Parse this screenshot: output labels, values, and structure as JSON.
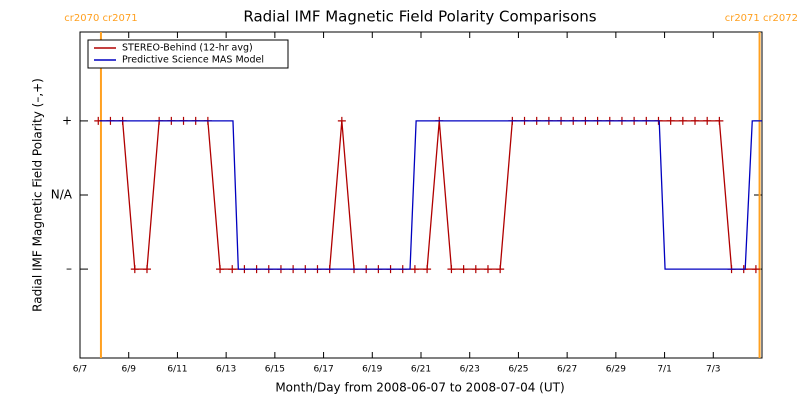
{
  "chart_data": {
    "type": "line",
    "title": "Radial IMF Magnetic Field Polarity Comparisons",
    "xlabel": "Month/Day from 2008-06-07 to 2008-07-04 (UT)",
    "ylabel": "Radial IMF Magnetic Field Polarity (–,+)",
    "xlim": [
      0,
      28
    ],
    "ylim": [
      -2.2,
      2.2
    ],
    "xticks": [
      {
        "value": 0,
        "label": "6/7"
      },
      {
        "value": 2,
        "label": "6/9"
      },
      {
        "value": 4,
        "label": "6/11"
      },
      {
        "value": 6,
        "label": "6/13"
      },
      {
        "value": 8,
        "label": "6/15"
      },
      {
        "value": 10,
        "label": "6/17"
      },
      {
        "value": 12,
        "label": "6/19"
      },
      {
        "value": 14,
        "label": "6/21"
      },
      {
        "value": 16,
        "label": "6/23"
      },
      {
        "value": 18,
        "label": "6/25"
      },
      {
        "value": 20,
        "label": "6/27"
      },
      {
        "value": 22,
        "label": "6/29"
      },
      {
        "value": 24,
        "label": "7/1"
      },
      {
        "value": 26,
        "label": "7/3"
      }
    ],
    "yticks": [
      {
        "value": 1,
        "label": "+"
      },
      {
        "value": 0,
        "label": "N/A"
      },
      {
        "value": -1,
        "label": "–"
      }
    ],
    "legend": "upper left",
    "annotations": [
      {
        "text": "cr2070 cr2071",
        "x": 0.86,
        "color": "#ffa020"
      },
      {
        "text": "cr2071 cr2072",
        "x": 27.9,
        "color": "#ffa020"
      }
    ],
    "series": [
      {
        "name": "STEREO-Behind (12-hr avg)",
        "color": "#b00000",
        "markers": true,
        "x": [
          0.75,
          1.25,
          1.75,
          2.25,
          2.75,
          3.25,
          3.75,
          4.25,
          4.75,
          5.25,
          5.75,
          6.25,
          6.75,
          7.25,
          7.75,
          8.25,
          8.75,
          9.25,
          9.75,
          10.25,
          10.75,
          11.25,
          11.75,
          12.25,
          12.75,
          13.25,
          13.75,
          14.25,
          14.75,
          15.25,
          15.75,
          16.25,
          16.75,
          17.25,
          17.75,
          18.25,
          18.75,
          19.25,
          19.75,
          20.25,
          20.75,
          21.25,
          21.75,
          22.25,
          22.75,
          23.25,
          23.75,
          24.25,
          24.75,
          25.25,
          25.75,
          26.25,
          26.75,
          27.25,
          27.75
        ],
        "values": [
          1,
          1,
          1,
          -1,
          -1,
          1,
          1,
          1,
          1,
          1,
          -1,
          -1,
          -1,
          -1,
          -1,
          -1,
          -1,
          -1,
          -1,
          -1,
          1,
          -1,
          -1,
          -1,
          -1,
          -1,
          -1,
          -1,
          1,
          -1,
          -1,
          -1,
          -1,
          -1,
          1,
          1,
          1,
          1,
          1,
          1,
          1,
          1,
          1,
          1,
          1,
          1,
          1,
          1,
          1,
          1,
          1,
          1,
          -1,
          -1,
          -1
        ]
      },
      {
        "name": "Predictive Science MAS Model",
        "color": "#0000c0",
        "markers": false,
        "x": [
          0.82,
          6.28,
          6.5,
          13.55,
          13.8,
          23.78,
          24.02,
          27.31,
          27.6,
          28
        ],
        "values": [
          1,
          1,
          -1,
          -1,
          1,
          1,
          -1,
          -1,
          1,
          1
        ]
      }
    ]
  }
}
